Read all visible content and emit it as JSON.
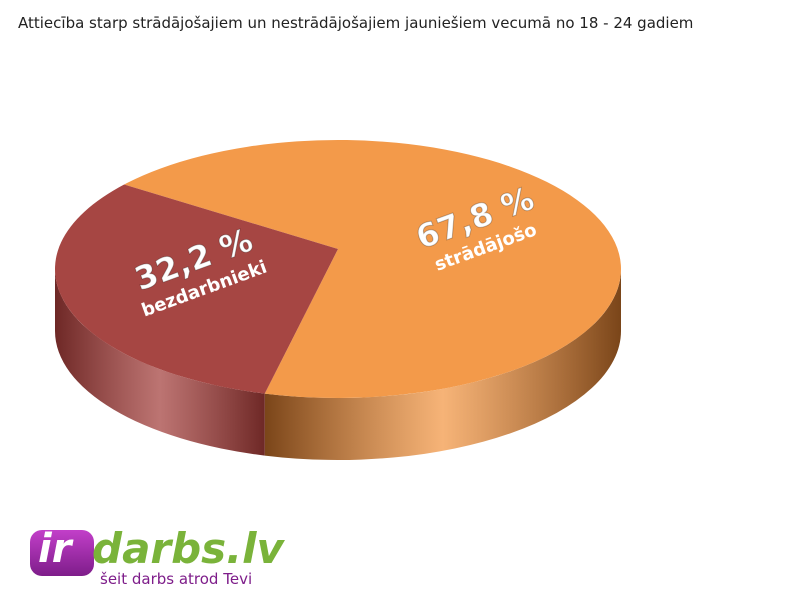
{
  "chart_data": {
    "type": "pie",
    "title": "Attiecība starp strādājošajiem un nestrādājošajiem jauniešiem vecumā no 18 - 24 gadiem",
    "categories": [
      "strādājošo",
      "bezdarbnieki"
    ],
    "values": [
      67.8,
      32.2
    ],
    "value_labels": [
      "67,8 %",
      "32,2 %"
    ],
    "colors": [
      "#f39a4a",
      "#a64643"
    ],
    "side_colors": [
      "#7a4519",
      "#6e2826"
    ]
  },
  "logo": {
    "brand_prefix": "ir",
    "brand": "darbs.lv",
    "tagline": "šeit darbs atrod Tevi"
  }
}
